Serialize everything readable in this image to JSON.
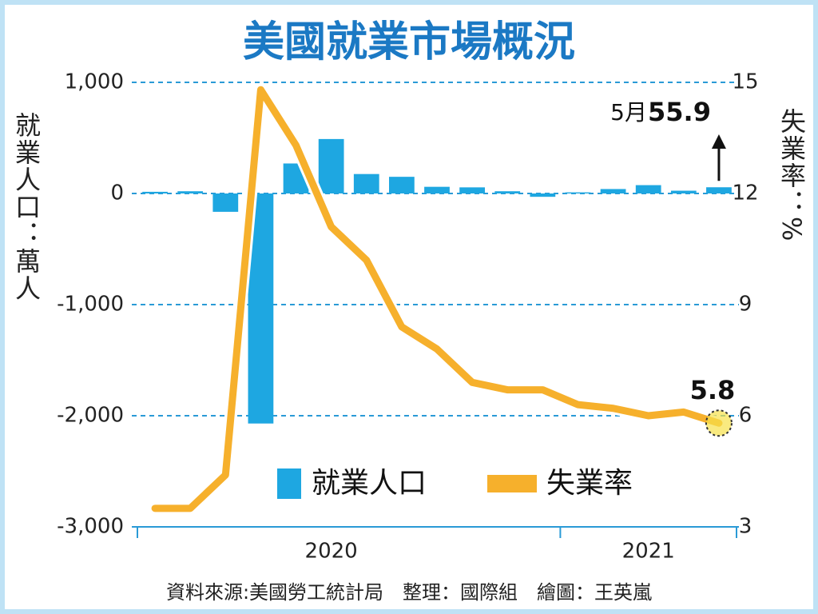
{
  "chart_data": {
    "type": "bar_line",
    "title": "美國就業市場概況",
    "y_label": "就業人口：萬人",
    "y2_label": "失業率：%",
    "categories": [
      null,
      null,
      null,
      null,
      null,
      "2020",
      null,
      null,
      null,
      null,
      null,
      null,
      null,
      null,
      "2021",
      null,
      null
    ],
    "series": [
      {
        "name": "就業人口",
        "type": "bar",
        "color": "#1ea7e1",
        "values": [
          15,
          20,
          -165,
          -2070,
          270,
          490,
          175,
          150,
          60,
          55,
          20,
          -30,
          10,
          40,
          75,
          25,
          55.9
        ]
      },
      {
        "name": "失業率",
        "type": "line",
        "axis": "y2",
        "color": "#f6b02c",
        "values": [
          3.5,
          3.5,
          4.4,
          14.8,
          13.3,
          11.1,
          10.2,
          8.4,
          7.8,
          6.9,
          6.7,
          6.7,
          6.3,
          6.2,
          6.0,
          6.1,
          5.8
        ]
      }
    ],
    "annotation": "5月",
    "ylim": [
      -3000,
      1000
    ],
    "yticks": [
      {
        "value": -3000,
        "label": "-3,000"
      },
      {
        "value": -2000,
        "label": "-2,000"
      },
      {
        "value": -1000,
        "label": "-1,000"
      },
      0,
      {
        "value": 1000,
        "label": "1,000"
      }
    ],
    "y2lim": [
      3,
      15
    ],
    "y2ticks": [
      3,
      6,
      9,
      12,
      15
    ],
    "grid": true,
    "source": "資料來源:美國勞工統計局　整理：國際組　繪圖：王英嵐"
  }
}
